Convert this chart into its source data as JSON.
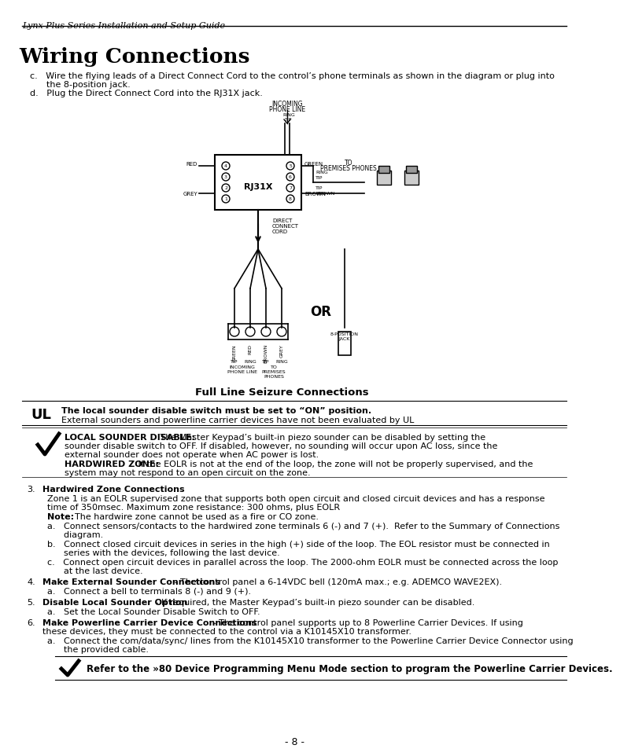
{
  "header_italic": "Lynx Plus Series Installation and Setup Guide",
  "title": "Wiring Connections",
  "bg_color": "#ffffff",
  "intro_c": "c.   Wire the flying leads of a Direct Connect Cord to the control’s phone terminals as shown in the diagram or plug into",
  "intro_c2": "      the 8-position jack.",
  "intro_d": "d.   Plug the Direct Connect Cord into the RJ31X jack.",
  "diagram_caption": "Full Line Seizure Connections",
  "ul_line1": "The local sounder disable switch must be set to “ON” position.",
  "ul_line2": "External sounders and powerline carrier devices have not been evaluated by UL",
  "note_bold1": "LOCAL SOUNDER DISABLE:",
  "note_text1": " The Master Keypad’s built-in piezo sounder can be disabled by setting the",
  "note_text1b": "sounder disable switch to OFF. If disabled, however, no sounding will occur upon AC loss, since the",
  "note_text1c": "external sounder does not operate when AC power is lost.",
  "note_bold2": "HARDWIRED ZONE:",
  "note_text2": " If the EOLR is not at the end of the loop, the zone will not be properly supervised, and the",
  "note_text2b": "system may not respond to an open circuit on the zone.",
  "sec3_num": "3.",
  "sec3_title": "Hardwired Zone Connections",
  "sec3_body1": "Zone 1 is an EOLR supervised zone that supports both open circuit and closed circuit devices and has a response",
  "sec3_body2": "time of 350msec. Maximum zone resistance: 300 ohms, plus EOLR",
  "sec3_note_bold": "Note:",
  "sec3_note": "  The hardwire zone cannot be used as a fire or CO zone.",
  "sec3_a": "a.   Connect sensors/contacts to the hardwired zone terminals 6 (-) and 7 (+).  Refer to the Summary of Connections",
  "sec3_a2": "      diagram.",
  "sec3_b": "b.   Connect closed circuit devices in series in the high (+) side of the loop. The EOL resistor must be connected in",
  "sec3_b2": "      series with the devices, following the last device.",
  "sec3_c": "c.   Connect open circuit devices in parallel across the loop. The 2000-ohm EOLR must be connected across the loop",
  "sec3_c2": "      at the last device.",
  "sec4_num": "4.",
  "sec4_bold": "Make External Sounder Connections",
  "sec4_text": " - The control panel a 6-14VDC bell (120mA max.; e.g. ADEMCO WAVE2EX).",
  "sec4_a": "a.   Connect a bell to terminals 8 (-) and 9 (+).",
  "sec5_num": "5.",
  "sec5_bold": "Disable Local Sounder Option",
  "sec5_text": " - If required, the Master Keypad’s built-in piezo sounder can be disabled.",
  "sec5_a": "a.   Set the Local Sounder Disable Switch to OFF.",
  "sec6_num": "6.",
  "sec6_bold": "Make Powerline Carrier Device Connections",
  "sec6_text": " - The control panel supports up to 8 Powerline Carrier Devices. If using",
  "sec6_text2": "these devices, they must be connected to the control via a K10145X10 transformer.",
  "sec6_a": "a.   Connect the com/data/sync/ lines from the K10145X10 transformer to the Powerline Carrier Device Connector using",
  "sec6_a2": "      the provided cable.",
  "footer_bold": "Refer to the »80 Device Programming Menu Mode section to program the Powerline Carrier Devices.",
  "page_num": "- 8 -"
}
